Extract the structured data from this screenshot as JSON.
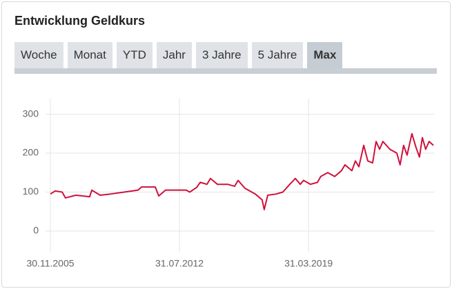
{
  "header": {
    "title": "Entwicklung Geldkurs"
  },
  "tabs": [
    "Woche",
    "Monat",
    "YTD",
    "Jahr",
    "3 Jahre",
    "5 Jahre",
    "Max"
  ],
  "active_tab": 6,
  "chart_data": {
    "type": "line",
    "color": "#d0103a",
    "grid": true,
    "xlim": [
      2005.91,
      2025.77
    ],
    "xticks": [
      {
        "value": 2005.91,
        "label": "30.11.2005"
      },
      {
        "value": 2012.58,
        "label": "31.07.2012"
      },
      {
        "value": 2019.25,
        "label": "31.03.2019"
      }
    ],
    "ylim": [
      -55,
      340
    ],
    "yticks": [
      0,
      100,
      200,
      300
    ],
    "x": [
      2005.91,
      2006.16,
      2006.52,
      2006.69,
      2007.23,
      2007.94,
      2008.05,
      2008.48,
      2009.01,
      2009.72,
      2010.44,
      2010.62,
      2011.33,
      2011.51,
      2011.86,
      2012.93,
      2013.11,
      2013.47,
      2013.65,
      2014.0,
      2014.18,
      2014.54,
      2015.07,
      2015.43,
      2015.61,
      2015.96,
      2016.5,
      2016.85,
      2016.96,
      2017.14,
      2017.57,
      2017.92,
      2018.28,
      2018.57,
      2018.82,
      2018.99,
      2019.35,
      2019.71,
      2019.88,
      2020.24,
      2020.6,
      2020.95,
      2021.13,
      2021.49,
      2021.67,
      2021.85,
      2022.1,
      2022.31,
      2022.56,
      2022.74,
      2022.92,
      2023.09,
      2023.45,
      2023.81,
      2023.98,
      2024.16,
      2024.34,
      2024.59,
      2024.8,
      2024.98,
      2025.13,
      2025.3,
      2025.48,
      2025.7
    ],
    "values": [
      95,
      103,
      100,
      85,
      92,
      88,
      105,
      92,
      95,
      100,
      105,
      113,
      113,
      90,
      105,
      105,
      100,
      112,
      125,
      120,
      135,
      120,
      120,
      115,
      130,
      110,
      95,
      80,
      55,
      92,
      95,
      100,
      120,
      135,
      120,
      130,
      120,
      125,
      140,
      150,
      140,
      155,
      170,
      155,
      180,
      165,
      220,
      180,
      175,
      230,
      210,
      230,
      210,
      200,
      170,
      220,
      195,
      250,
      215,
      190,
      240,
      210,
      230,
      220
    ]
  }
}
